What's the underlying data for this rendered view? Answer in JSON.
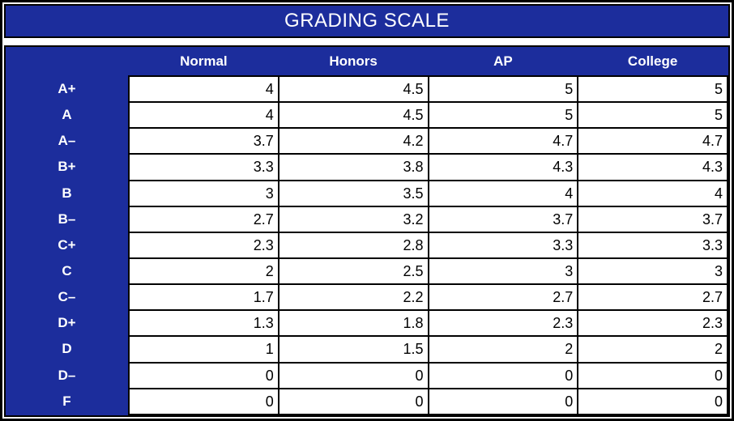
{
  "title": "GRADING SCALE",
  "colors": {
    "blue": "#1c2d9c",
    "border": "#000000",
    "cell_bg": "#ffffff",
    "cell_text": "#000000",
    "text_on_blue": "#ffffff"
  },
  "table": {
    "columns": [
      "Normal",
      "Honors",
      "AP",
      "College"
    ],
    "rows": [
      {
        "grade": "A+",
        "values": [
          "4",
          "4.5",
          "5",
          "5"
        ]
      },
      {
        "grade": "A",
        "values": [
          "4",
          "4.5",
          "5",
          "5"
        ]
      },
      {
        "grade": "A–",
        "values": [
          "3.7",
          "4.2",
          "4.7",
          "4.7"
        ]
      },
      {
        "grade": "B+",
        "values": [
          "3.3",
          "3.8",
          "4.3",
          "4.3"
        ]
      },
      {
        "grade": "B",
        "values": [
          "3",
          "3.5",
          "4",
          "4"
        ]
      },
      {
        "grade": "B–",
        "values": [
          "2.7",
          "3.2",
          "3.7",
          "3.7"
        ]
      },
      {
        "grade": "C+",
        "values": [
          "2.3",
          "2.8",
          "3.3",
          "3.3"
        ]
      },
      {
        "grade": "C",
        "values": [
          "2",
          "2.5",
          "3",
          "3"
        ]
      },
      {
        "grade": "C–",
        "values": [
          "1.7",
          "2.2",
          "2.7",
          "2.7"
        ]
      },
      {
        "grade": "D+",
        "values": [
          "1.3",
          "1.8",
          "2.3",
          "2.3"
        ]
      },
      {
        "grade": "D",
        "values": [
          "1",
          "1.5",
          "2",
          "2"
        ]
      },
      {
        "grade": "D–",
        "values": [
          "0",
          "0",
          "0",
          "0"
        ]
      },
      {
        "grade": "F",
        "values": [
          "0",
          "0",
          "0",
          "0"
        ]
      }
    ]
  }
}
